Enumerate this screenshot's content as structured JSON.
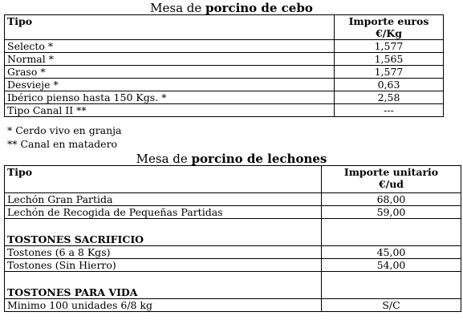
{
  "cebo": {
    "caption_prefix": "Mesa de ",
    "caption_bold": "porcino de cebo",
    "col_type": "Tipo",
    "col_price_1": "Importe euros",
    "col_price_2": "€/Kg",
    "rows": [
      {
        "tipo": "Selecto *",
        "valor": "1,577"
      },
      {
        "tipo": "Normal *",
        "valor": "1,565"
      },
      {
        "tipo": "Graso *",
        "valor": "1,577"
      },
      {
        "tipo": "Desvieje *",
        "valor": "0,63"
      },
      {
        "tipo": "Ibérico pienso hasta 150 Kgs. *",
        "valor": "2,58"
      },
      {
        "tipo": "Tipo Canal II **",
        "valor": "---"
      }
    ],
    "note1": "* Cerdo vivo en granja",
    "note2": "** Canal en matadero"
  },
  "lechones": {
    "caption_prefix": "Mesa de ",
    "caption_bold": "porcino de lechones",
    "col_type": "Tipo",
    "col_price_1": "Importe unitario",
    "col_price_2": "€/ud",
    "rows": [
      {
        "tipo": "Lechón Gran Partida",
        "valor": "68,00"
      },
      {
        "tipo": "Lechón de Recogida de Pequeñas Partidas",
        "valor": "59,00"
      }
    ],
    "section1": "TOSTONES SACRIFICIO",
    "section1_rows": [
      {
        "tipo": "Tostones (6 a 8 Kgs)",
        "valor": "45,00"
      },
      {
        "tipo": "Tostones  (Sin Hierro)",
        "valor": "54,00"
      }
    ],
    "section2": "TOSTONES PARA VIDA",
    "section2_rows": [
      {
        "tipo": "Minimo 100 unidades 6/8 kg",
        "valor": "S/C"
      }
    ]
  }
}
